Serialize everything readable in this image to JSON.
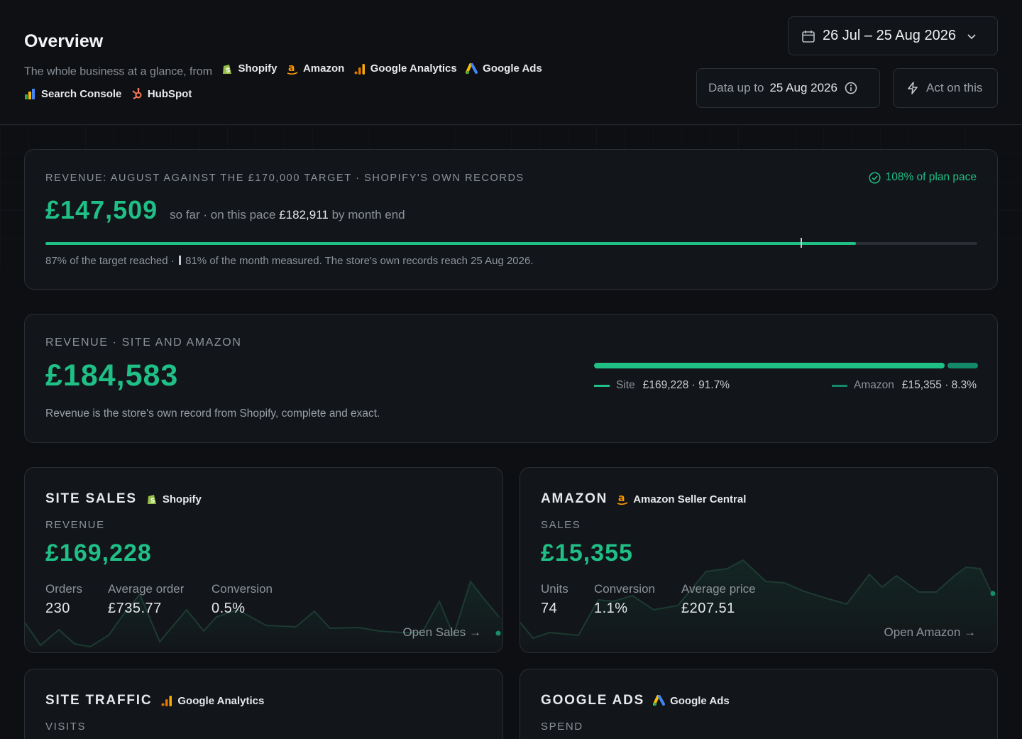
{
  "header": {
    "title": "Overview",
    "subtitle_prefix": "The whole business at a glance, from",
    "sources": [
      "Shopify",
      "Amazon",
      "Google Analytics",
      "Google Ads",
      "Search Console",
      "HubSpot"
    ],
    "date_range": "26 Jul – 25 Aug 2026",
    "data_up_label": "Data up to",
    "data_up_date": "25 Aug 2026",
    "act_label": "Act on this"
  },
  "target_card": {
    "eyebrow": "REVENUE: AUGUST AGAINST THE £170,000 TARGET · SHOPIFY'S OWN RECORDS",
    "pace_badge": "108% of plan pace",
    "value": "£147,509",
    "so_far": "so far · on this pace",
    "projection": "£182,911",
    "month_end": "by month end",
    "progress": 0.87,
    "month_marker": 0.81,
    "note_a": "87% of the target reached ·",
    "note_b": "81% of the month measured. The store's own records reach 25 Aug 2026.",
    "accent": "#1fbf86"
  },
  "split_card": {
    "eyebrow": "REVENUE · SITE AND AMAZON",
    "value": "£184,583",
    "note": "Revenue is the store's own record from Shopify, complete and exact.",
    "site_label": "Site",
    "site_value": "£169,228 · 91.7%",
    "site_share": 0.917,
    "amazon_label": "Amazon",
    "amazon_value": "£15,355 · 8.3%",
    "amazon_share": 0.083
  },
  "site_sales": {
    "title": "SITE SALES",
    "source": "Shopify",
    "metric": "REVENUE",
    "value": "£169,228",
    "kpis": [
      {
        "label": "Orders",
        "value": "230"
      },
      {
        "label": "Average order",
        "value": "£735.77"
      },
      {
        "label": "Conversion",
        "value": "0.5%"
      }
    ],
    "link": "Open Sales →"
  },
  "amazon": {
    "title": "AMAZON",
    "source": "Amazon Seller Central",
    "metric": "SALES",
    "value": "£15,355",
    "kpis": [
      {
        "label": "Units",
        "value": "74"
      },
      {
        "label": "Conversion",
        "value": "1.1%"
      },
      {
        "label": "Average price",
        "value": "£207.51"
      }
    ],
    "link": "Open Amazon →"
  },
  "site_traffic": {
    "title": "SITE TRAFFIC",
    "source": "Google Analytics",
    "metric": "VISITS"
  },
  "google_ads": {
    "title": "GOOGLE ADS",
    "source": "Google Ads",
    "metric": "SPEND"
  }
}
